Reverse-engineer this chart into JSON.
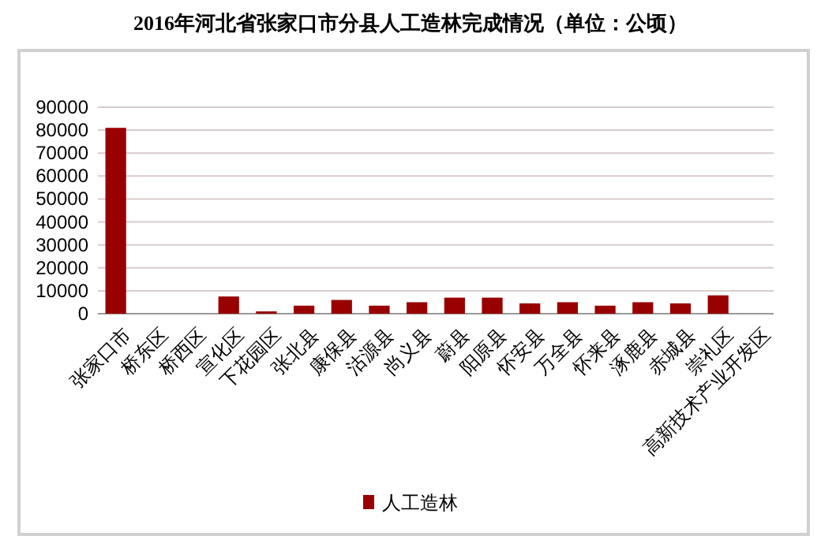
{
  "chart_data": {
    "type": "bar",
    "title": "2016年河北省张家口市分县人工造林完成情况（单位：公顷）",
    "categories": [
      "张家口市",
      "桥东区",
      "桥西区",
      "宣化区",
      "下花园区",
      "张北县",
      "康保县",
      "沽源县",
      "尚义县",
      "蔚县",
      "阳原县",
      "怀安县",
      "万全县",
      "怀来县",
      "涿鹿县",
      "赤城县",
      "崇礼区",
      "高新技术产业开发区"
    ],
    "series": [
      {
        "name": "人工造林",
        "color": "#990000",
        "values": [
          81000,
          0,
          0,
          7500,
          1000,
          3500,
          6000,
          3500,
          5000,
          7000,
          7000,
          4500,
          5000,
          3500,
          5000,
          4500,
          8000,
          0
        ]
      }
    ],
    "ylim": [
      0,
      90000
    ],
    "yticks": [
      0,
      10000,
      20000,
      30000,
      40000,
      50000,
      60000,
      70000,
      80000,
      90000
    ],
    "grid": "y",
    "legend": "bottom"
  }
}
